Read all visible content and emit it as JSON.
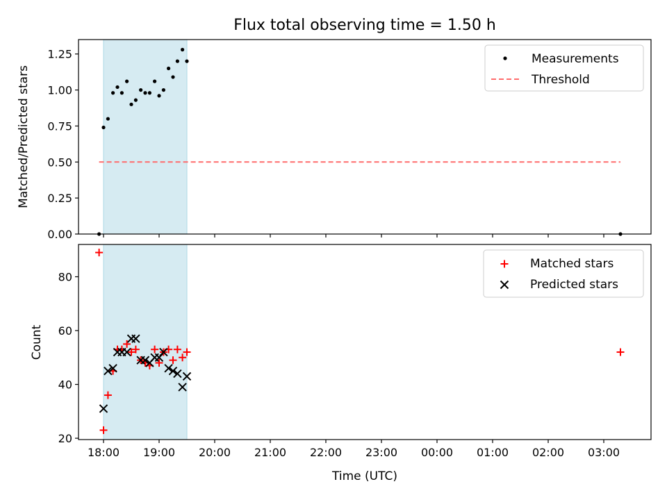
{
  "colors": {
    "shade": "#add8e6",
    "threshold": "#ff6b6b",
    "measurement": "#000000",
    "matched": "#ff0000",
    "predicted": "#000000",
    "axis": "#000000"
  },
  "chart_data": [
    {
      "type": "scatter",
      "title": "Flux total observing time = 1.50 h",
      "xlabel": "",
      "ylabel": "Matched/Predicted stars",
      "ylim": [
        0,
        1.35
      ],
      "yticks": [
        0.0,
        0.25,
        0.5,
        0.75,
        1.0,
        1.25
      ],
      "ytick_labels": [
        "0.00",
        "0.25",
        "0.50",
        "0.75",
        "1.00",
        "1.25"
      ],
      "xlim_hours": [
        17.55,
        27.85
      ],
      "shaded_span_hours": [
        18.0,
        19.5
      ],
      "legend": {
        "position": "upper right",
        "entries": [
          "Measurements",
          "Threshold"
        ]
      },
      "series": [
        {
          "name": "Measurements",
          "marker": "dot",
          "x_hours": [
            17.92,
            18.0,
            18.08,
            18.17,
            18.25,
            18.33,
            18.42,
            18.5,
            18.58,
            18.67,
            18.75,
            18.83,
            18.92,
            19.0,
            19.08,
            19.17,
            19.25,
            19.33,
            19.42,
            19.5,
            27.3
          ],
          "y": [
            0.0,
            0.74,
            0.8,
            0.98,
            1.02,
            0.98,
            1.06,
            0.9,
            0.93,
            1.0,
            0.98,
            0.98,
            1.06,
            0.96,
            1.0,
            1.15,
            1.09,
            1.2,
            1.28,
            1.2,
            0.0
          ]
        },
        {
          "name": "Threshold",
          "line": "dashed",
          "x_hours": [
            17.92,
            27.3
          ],
          "y": [
            0.5,
            0.5
          ]
        }
      ]
    },
    {
      "type": "scatter",
      "title": "",
      "xlabel": "Time (UTC)",
      "ylabel": "Count",
      "ylim": [
        19.5,
        92
      ],
      "yticks": [
        20,
        40,
        60,
        80
      ],
      "ytick_labels": [
        "20",
        "40",
        "60",
        "80"
      ],
      "xlim_hours": [
        17.55,
        27.85
      ],
      "xticks_hours": [
        18,
        19,
        20,
        21,
        22,
        23,
        24,
        25,
        26,
        27
      ],
      "xtick_labels": [
        "18:00",
        "19:00",
        "20:00",
        "21:00",
        "22:00",
        "23:00",
        "00:00",
        "01:00",
        "02:00",
        "03:00"
      ],
      "shaded_span_hours": [
        18.0,
        19.5
      ],
      "legend": {
        "position": "upper right",
        "entries": [
          "Matched stars",
          "Predicted stars"
        ]
      },
      "series": [
        {
          "name": "Matched stars",
          "marker": "plus",
          "x_hours": [
            17.92,
            18.0,
            18.08,
            18.17,
            18.25,
            18.33,
            18.42,
            18.5,
            18.58,
            18.67,
            18.75,
            18.83,
            18.92,
            19.0,
            19.08,
            19.17,
            19.25,
            19.33,
            19.42,
            19.5,
            27.3
          ],
          "y": [
            89,
            23,
            36,
            45,
            53,
            53,
            55,
            52,
            53,
            49,
            48,
            47,
            53,
            48,
            52,
            53,
            49,
            53,
            50,
            52,
            52
          ]
        },
        {
          "name": "Predicted stars",
          "marker": "x",
          "x_hours": [
            18.0,
            18.08,
            18.17,
            18.25,
            18.33,
            18.42,
            18.5,
            18.58,
            18.67,
            18.75,
            18.83,
            18.92,
            19.0,
            19.08,
            19.17,
            19.25,
            19.33,
            19.42,
            19.5
          ],
          "y": [
            31,
            45,
            46,
            52,
            52,
            52,
            57,
            57,
            49,
            49,
            48,
            50,
            50,
            52,
            46,
            45,
            44,
            39,
            43
          ]
        }
      ]
    }
  ]
}
